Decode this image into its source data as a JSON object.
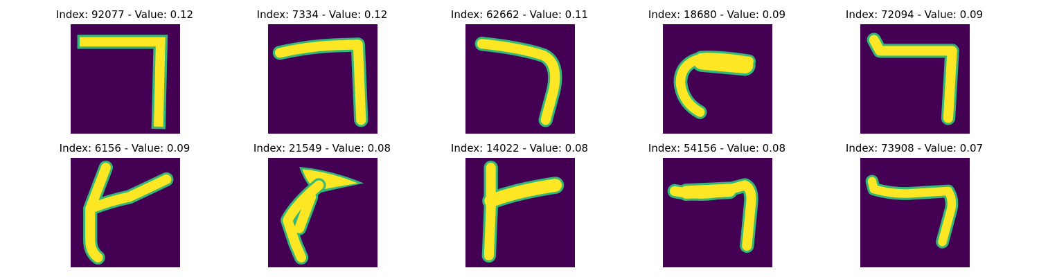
{
  "colors": {
    "background": "#440154",
    "foreground": "#fde725",
    "edge": "#35b779"
  },
  "panels": [
    {
      "title": "Index: 92077 - Value: 0.12"
    },
    {
      "title": "Index: 7334 - Value: 0.12"
    },
    {
      "title": "Index: 62662 - Value: 0.11"
    },
    {
      "title": "Index: 18680 - Value: 0.09"
    },
    {
      "title": "Index: 72094 - Value: 0.09"
    },
    {
      "title": "Index: 6156 - Value: 0.09"
    },
    {
      "title": "Index: 21549 - Value: 0.08"
    },
    {
      "title": "Index: 14022 - Value: 0.08"
    },
    {
      "title": "Index: 54156 - Value: 0.08"
    },
    {
      "title": "Index: 73908 - Value: 0.07"
    }
  ]
}
